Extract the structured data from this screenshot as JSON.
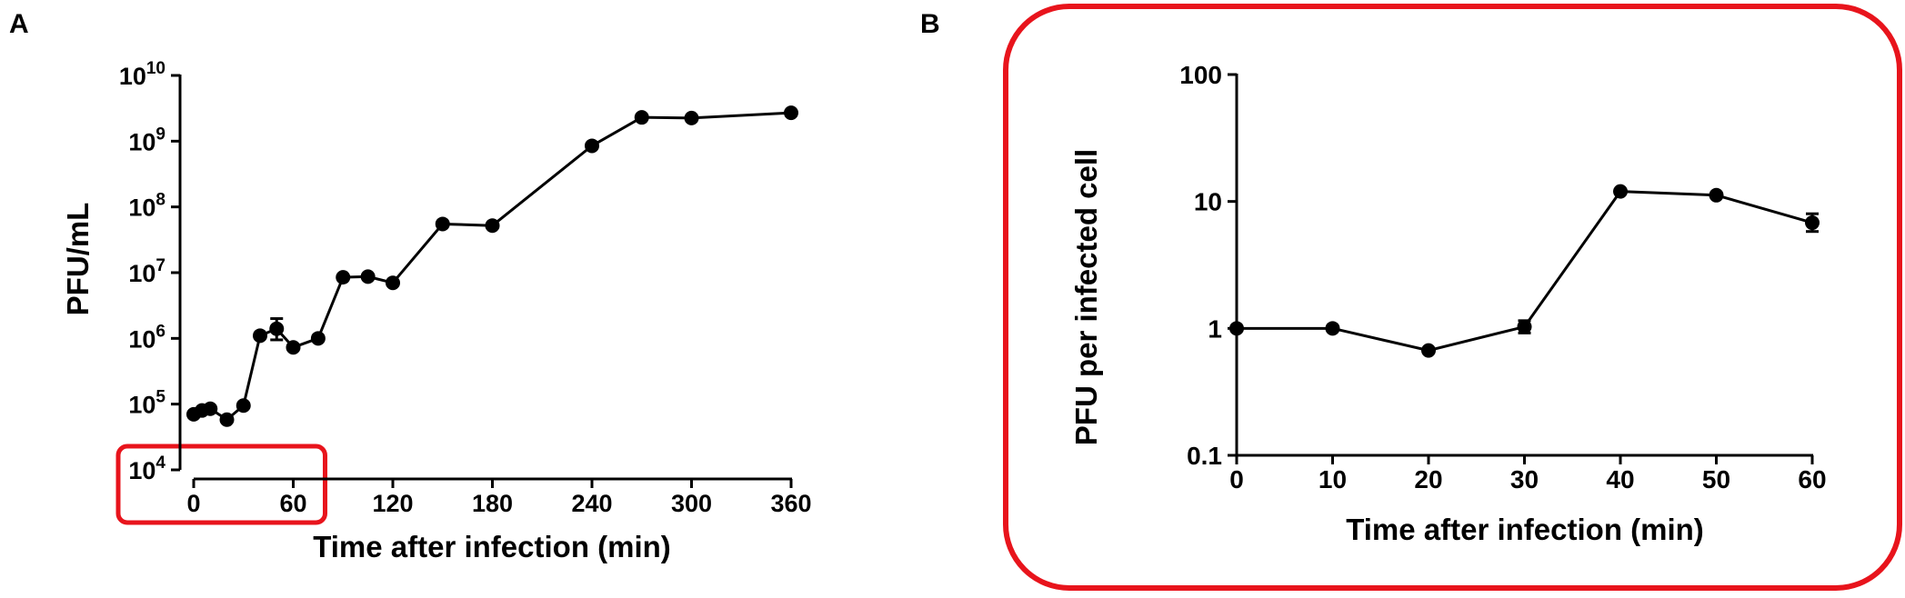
{
  "chart_data": [
    {
      "panel": "A",
      "type": "line",
      "xlabel": "Time after infection (min)",
      "ylabel": "PFU/mL",
      "yscale": "log",
      "xlim": [
        0,
        360
      ],
      "ylim": [
        10000,
        10000000000
      ],
      "xticks": [
        {
          "value": 0,
          "label": "0"
        },
        {
          "value": 60,
          "label": "60"
        },
        {
          "value": 120,
          "label": "120"
        },
        {
          "value": 180,
          "label": "180"
        },
        {
          "value": 240,
          "label": "240"
        },
        {
          "value": 300,
          "label": "300"
        },
        {
          "value": 360,
          "label": "360"
        }
      ],
      "yticks": [
        {
          "value": 10000,
          "base": "10",
          "exp": "4"
        },
        {
          "value": 100000,
          "base": "10",
          "exp": "5"
        },
        {
          "value": 1000000,
          "base": "10",
          "exp": "6"
        },
        {
          "value": 10000000,
          "base": "10",
          "exp": "7"
        },
        {
          "value": 100000000,
          "base": "10",
          "exp": "8"
        },
        {
          "value": 1000000000,
          "base": "10",
          "exp": "9"
        },
        {
          "value": 10000000000,
          "base": "10",
          "exp": "10"
        }
      ],
      "grid": false,
      "highlight_box": {
        "x_range": [
          0,
          60
        ],
        "color": "#e8141c"
      },
      "series": [
        {
          "color": "#000000",
          "points": [
            {
              "x": 0,
              "y": 70000
            },
            {
              "x": 5,
              "y": 80000
            },
            {
              "x": 10,
              "y": 85000
            },
            {
              "x": 20,
              "y": 58000
            },
            {
              "x": 30,
              "y": 95000
            },
            {
              "x": 40,
              "y": 1100000
            },
            {
              "x": 50,
              "y": 1400000,
              "err_low": 950000,
              "err_high": 2000000
            },
            {
              "x": 60,
              "y": 730000
            },
            {
              "x": 75,
              "y": 1000000
            },
            {
              "x": 90,
              "y": 8500000
            },
            {
              "x": 105,
              "y": 8700000
            },
            {
              "x": 120,
              "y": 7000000
            },
            {
              "x": 150,
              "y": 55000000
            },
            {
              "x": 180,
              "y": 52000000
            },
            {
              "x": 240,
              "y": 850000000
            },
            {
              "x": 270,
              "y": 2300000000
            },
            {
              "x": 300,
              "y": 2250000000
            },
            {
              "x": 360,
              "y": 2700000000
            }
          ]
        }
      ]
    },
    {
      "panel": "B",
      "type": "line",
      "xlabel": "Time after infection (min)",
      "ylabel": "PFU per infected cell",
      "yscale": "log",
      "xlim": [
        0,
        60
      ],
      "ylim": [
        0.1,
        100
      ],
      "xticks": [
        {
          "value": 0,
          "label": "0"
        },
        {
          "value": 10,
          "label": "10"
        },
        {
          "value": 20,
          "label": "20"
        },
        {
          "value": 30,
          "label": "30"
        },
        {
          "value": 40,
          "label": "40"
        },
        {
          "value": 50,
          "label": "50"
        },
        {
          "value": 60,
          "label": "60"
        }
      ],
      "yticks": [
        {
          "value": 0.1,
          "label": "0.1"
        },
        {
          "value": 1,
          "label": "1"
        },
        {
          "value": 10,
          "label": "10"
        },
        {
          "value": 100,
          "label": "100"
        }
      ],
      "grid": false,
      "frame_color": "#e8141c",
      "series": [
        {
          "color": "#000000",
          "points": [
            {
              "x": 0,
              "y": 1.0
            },
            {
              "x": 10,
              "y": 1.0
            },
            {
              "x": 20,
              "y": 0.67
            },
            {
              "x": 30,
              "y": 1.03,
              "err_low": 0.92,
              "err_high": 1.15
            },
            {
              "x": 40,
              "y": 12.0
            },
            {
              "x": 50,
              "y": 11.2
            },
            {
              "x": 60,
              "y": 6.8,
              "err_low": 5.8,
              "err_high": 8.0
            }
          ]
        }
      ]
    }
  ]
}
